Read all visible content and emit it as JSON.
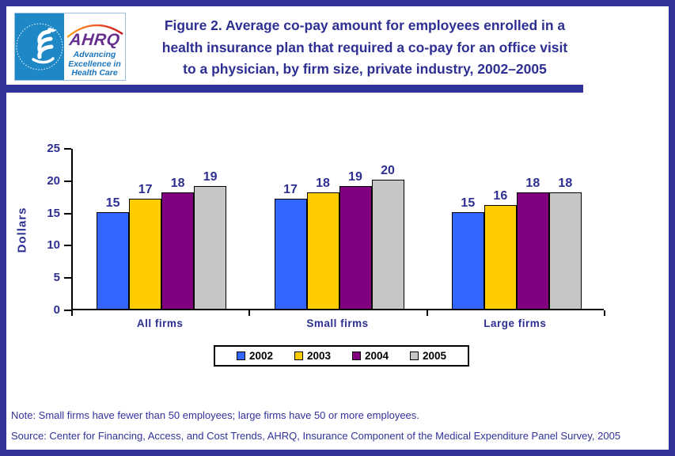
{
  "header": {
    "logo": {
      "ahrq_acronym": "AHRQ",
      "ahrq_tagline": [
        "Advancing",
        "Excellence in",
        "Health Care"
      ]
    },
    "title_lines": [
      "Figure 2. Average co-pay amount for employees enrolled in a",
      "health insurance plan that required a co-pay for an office visit",
      "to a physician, by firm size, private industry, 2002–2005"
    ]
  },
  "chart_data": {
    "type": "bar",
    "title": "Figure 2. Average co-pay amount for employees enrolled in a health insurance plan that required a co-pay for an office visit to a physician, by firm size, private industry, 2002–2005",
    "categories": [
      "All firms",
      "Small firms",
      "Large firms"
    ],
    "series": [
      {
        "name": "2002",
        "color": "#3366FF",
        "values": [
          15,
          17,
          15
        ]
      },
      {
        "name": "2003",
        "color": "#FFCC00",
        "values": [
          17,
          18,
          16
        ]
      },
      {
        "name": "2004",
        "color": "#800080",
        "values": [
          18,
          19,
          18
        ]
      },
      {
        "name": "2005",
        "color": "#C6C6C6",
        "values": [
          19,
          20,
          18
        ]
      }
    ],
    "xlabel": "",
    "ylabel": "Dollars",
    "ylim": [
      0,
      25
    ],
    "yticks": [
      0,
      5,
      10,
      15,
      20,
      25
    ],
    "grid": false,
    "legend_position": "bottom",
    "value_labels": true
  },
  "footer": {
    "note": "Note: Small firms have fewer than 50 employees; large firms have 50 or more employees.",
    "source": "Source: Center for Financing, Access, and Cost Trends, AHRQ, Insurance Component of the Medical Expenditure Panel Survey, 2005"
  },
  "colors": {
    "frame_navy": "#31329A",
    "title_navy": "#2D2F92",
    "axis_black": "#000000",
    "hhs_panel_blue": "#1E87C5",
    "ahrq_purple": "#652F8F",
    "ahrq_blue": "#1B75BC"
  }
}
